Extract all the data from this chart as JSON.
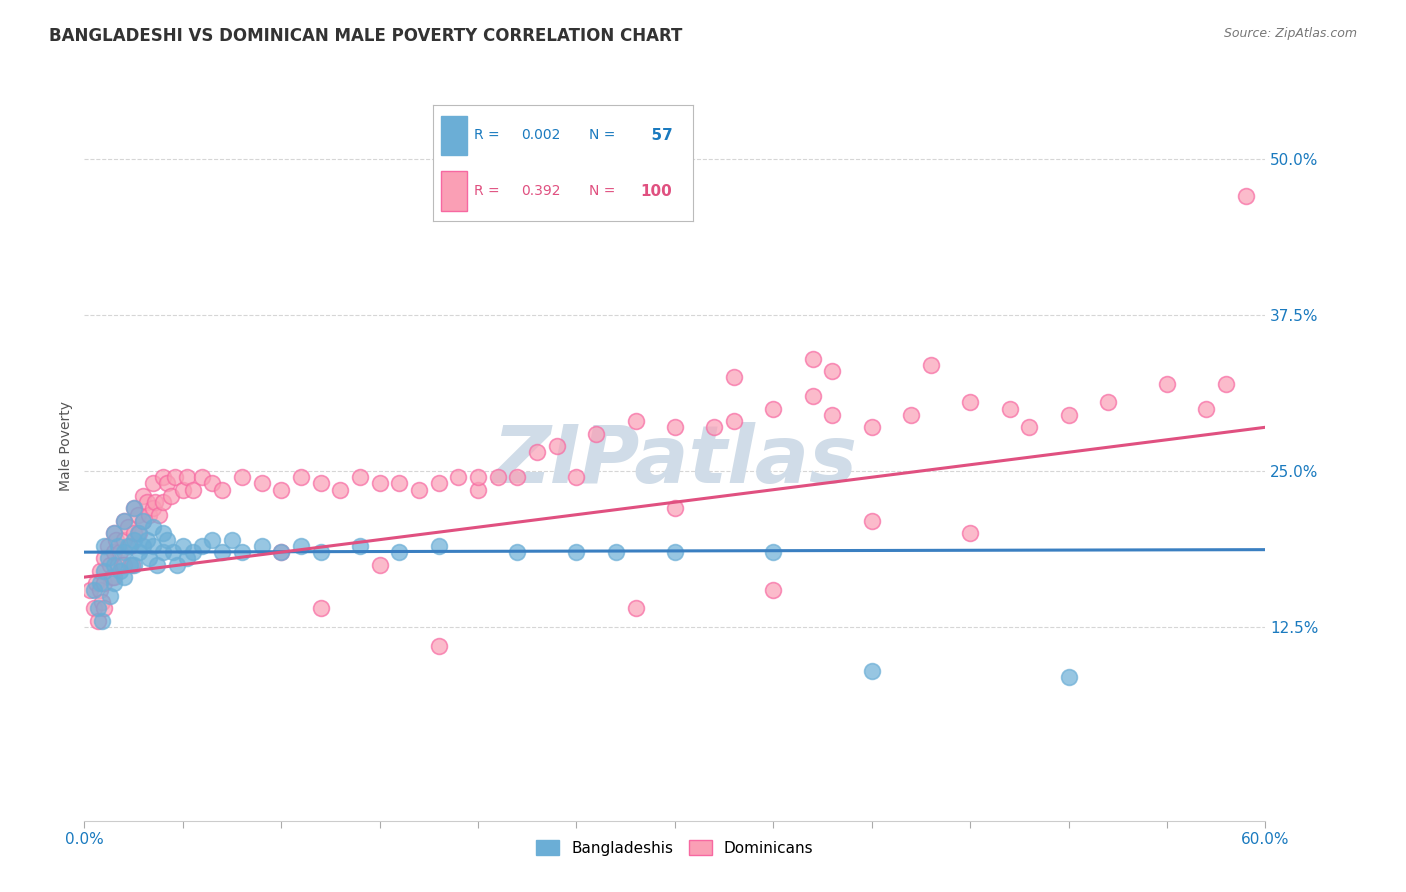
{
  "title": "BANGLADESHI VS DOMINICAN MALE POVERTY CORRELATION CHART",
  "source_text": "Source: ZipAtlas.com",
  "ylabel": "Male Poverty",
  "xlim": [
    0.0,
    0.6
  ],
  "ylim": [
    -0.03,
    0.57
  ],
  "yticks": [
    0.125,
    0.25,
    0.375,
    0.5
  ],
  "ytick_labels": [
    "12.5%",
    "25.0%",
    "37.5%",
    "50.0%"
  ],
  "xticks": [
    0.0,
    0.6
  ],
  "xtick_labels": [
    "0.0%",
    "60.0%"
  ],
  "bangladeshi_color": "#6baed6",
  "dominican_color": "#fa9fb5",
  "bangladeshi_edge": "#6baed6",
  "dominican_edge": "#f768a1",
  "bangladeshi_R": 0.002,
  "bangladeshi_N": 57,
  "dominican_R": 0.392,
  "dominican_N": 100,
  "blue_line_color": "#3a7fc1",
  "pink_line_color": "#e05080",
  "legend_blue_color": "#1a7abf",
  "legend_pink_color": "#e05080",
  "background_color": "#ffffff",
  "grid_color": "#cccccc",
  "watermark_text": "ZIPatlas",
  "watermark_color": "#d0dce8",
  "title_fontsize": 12,
  "axis_label_fontsize": 10,
  "tick_fontsize": 11,
  "bd_trend_y0": 0.185,
  "bd_trend_y1": 0.187,
  "dom_trend_y0": 0.165,
  "dom_trend_y1": 0.285,
  "bangladeshi_x": [
    0.005,
    0.007,
    0.008,
    0.009,
    0.01,
    0.01,
    0.012,
    0.013,
    0.015,
    0.015,
    0.015,
    0.017,
    0.018,
    0.02,
    0.02,
    0.02,
    0.022,
    0.023,
    0.025,
    0.025,
    0.025,
    0.027,
    0.028,
    0.03,
    0.03,
    0.032,
    0.033,
    0.035,
    0.035,
    0.037,
    0.04,
    0.04,
    0.042,
    0.045,
    0.047,
    0.05,
    0.052,
    0.055,
    0.06,
    0.065,
    0.07,
    0.075,
    0.08,
    0.09,
    0.1,
    0.11,
    0.12,
    0.14,
    0.16,
    0.18,
    0.22,
    0.25,
    0.27,
    0.3,
    0.35,
    0.4,
    0.5
  ],
  "bangladeshi_y": [
    0.155,
    0.14,
    0.16,
    0.13,
    0.19,
    0.17,
    0.18,
    0.15,
    0.2,
    0.175,
    0.16,
    0.19,
    0.17,
    0.21,
    0.185,
    0.165,
    0.19,
    0.175,
    0.22,
    0.195,
    0.175,
    0.2,
    0.185,
    0.21,
    0.19,
    0.195,
    0.18,
    0.205,
    0.19,
    0.175,
    0.2,
    0.185,
    0.195,
    0.185,
    0.175,
    0.19,
    0.18,
    0.185,
    0.19,
    0.195,
    0.185,
    0.195,
    0.185,
    0.19,
    0.185,
    0.19,
    0.185,
    0.19,
    0.185,
    0.19,
    0.185,
    0.185,
    0.185,
    0.185,
    0.185,
    0.09,
    0.085
  ],
  "dominican_x": [
    0.003,
    0.005,
    0.006,
    0.007,
    0.008,
    0.008,
    0.009,
    0.01,
    0.01,
    0.01,
    0.012,
    0.013,
    0.014,
    0.015,
    0.015,
    0.015,
    0.016,
    0.017,
    0.018,
    0.019,
    0.02,
    0.02,
    0.02,
    0.022,
    0.023,
    0.024,
    0.025,
    0.025,
    0.027,
    0.028,
    0.03,
    0.03,
    0.032,
    0.033,
    0.035,
    0.035,
    0.036,
    0.038,
    0.04,
    0.04,
    0.042,
    0.044,
    0.046,
    0.05,
    0.052,
    0.055,
    0.06,
    0.065,
    0.07,
    0.08,
    0.09,
    0.1,
    0.11,
    0.12,
    0.13,
    0.14,
    0.15,
    0.16,
    0.17,
    0.18,
    0.19,
    0.2,
    0.21,
    0.22,
    0.23,
    0.24,
    0.26,
    0.28,
    0.3,
    0.32,
    0.33,
    0.35,
    0.37,
    0.38,
    0.4,
    0.42,
    0.45,
    0.47,
    0.48,
    0.5,
    0.52,
    0.55,
    0.57,
    0.58,
    0.59,
    0.3,
    0.35,
    0.4,
    0.45,
    0.2,
    0.25,
    0.28,
    0.1,
    0.15,
    0.37,
    0.43,
    0.38,
    0.33,
    0.18,
    0.12
  ],
  "dominican_y": [
    0.155,
    0.14,
    0.16,
    0.13,
    0.17,
    0.155,
    0.145,
    0.18,
    0.16,
    0.14,
    0.19,
    0.175,
    0.165,
    0.2,
    0.185,
    0.165,
    0.195,
    0.175,
    0.185,
    0.175,
    0.21,
    0.195,
    0.175,
    0.205,
    0.19,
    0.175,
    0.22,
    0.2,
    0.215,
    0.2,
    0.23,
    0.21,
    0.225,
    0.215,
    0.24,
    0.22,
    0.225,
    0.215,
    0.245,
    0.225,
    0.24,
    0.23,
    0.245,
    0.235,
    0.245,
    0.235,
    0.245,
    0.24,
    0.235,
    0.245,
    0.24,
    0.235,
    0.245,
    0.24,
    0.235,
    0.245,
    0.24,
    0.24,
    0.235,
    0.24,
    0.245,
    0.235,
    0.245,
    0.245,
    0.265,
    0.27,
    0.28,
    0.29,
    0.285,
    0.285,
    0.29,
    0.3,
    0.31,
    0.295,
    0.285,
    0.295,
    0.305,
    0.3,
    0.285,
    0.295,
    0.305,
    0.32,
    0.3,
    0.32,
    0.47,
    0.22,
    0.155,
    0.21,
    0.2,
    0.245,
    0.245,
    0.14,
    0.185,
    0.175,
    0.34,
    0.335,
    0.33,
    0.325,
    0.11,
    0.14
  ]
}
